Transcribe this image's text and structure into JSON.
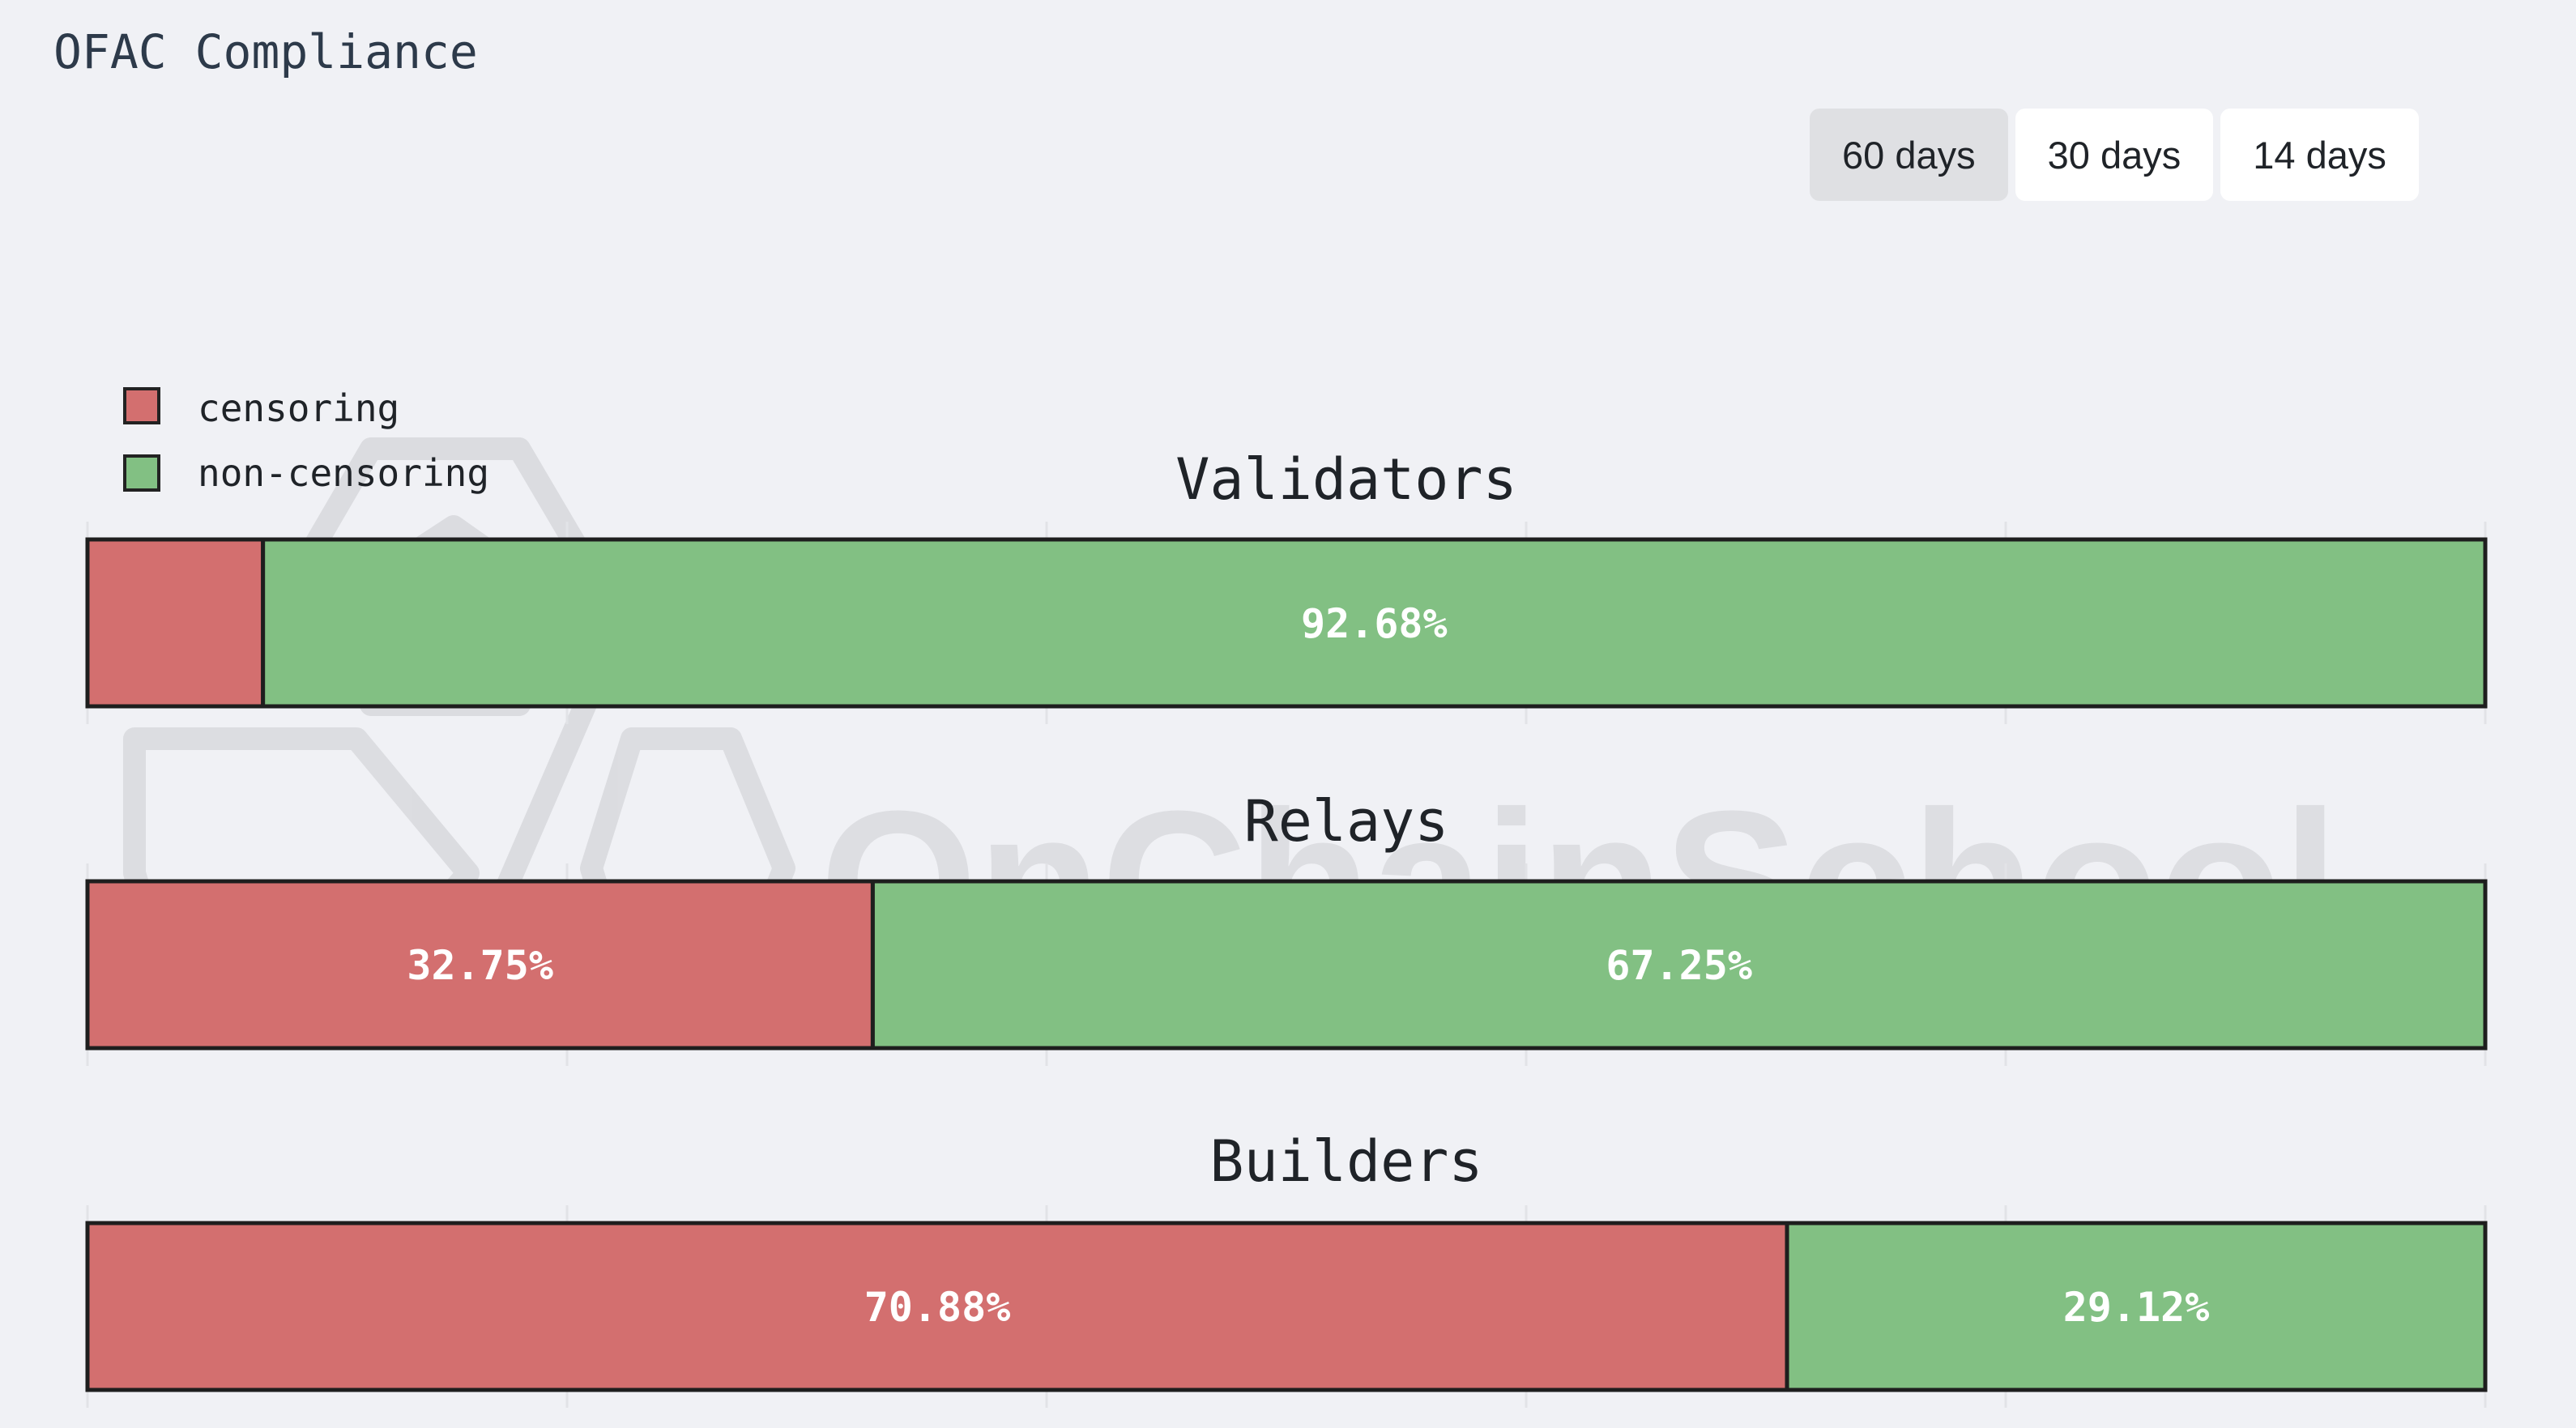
{
  "page": {
    "title": "OFAC Compliance"
  },
  "range_selector": {
    "options": [
      {
        "label": "60 days",
        "active": true
      },
      {
        "label": "30 days",
        "active": false
      },
      {
        "label": "14 days",
        "active": false
      }
    ]
  },
  "watermark": {
    "text": "OnChainSchool"
  },
  "colors": {
    "censoring": "#d36f6f",
    "non_censoring": "#82c083",
    "background": "#f0f1f5"
  },
  "chart_data": {
    "type": "bar",
    "orientation": "horizontal",
    "stacked": true,
    "xlim": [
      0,
      100
    ],
    "legend": {
      "position": "top-left",
      "entries": [
        "censoring",
        "non-censoring"
      ]
    },
    "categories": [
      "Validators",
      "Relays",
      "Builders"
    ],
    "series": [
      {
        "name": "censoring",
        "values": [
          7.32,
          32.75,
          70.88
        ]
      },
      {
        "name": "non-censoring",
        "values": [
          92.68,
          67.25,
          29.12
        ]
      }
    ],
    "data_labels": [
      [
        "",
        "92.68%"
      ],
      [
        "32.75%",
        "67.25%"
      ],
      [
        "70.88%",
        "29.12%"
      ]
    ]
  }
}
